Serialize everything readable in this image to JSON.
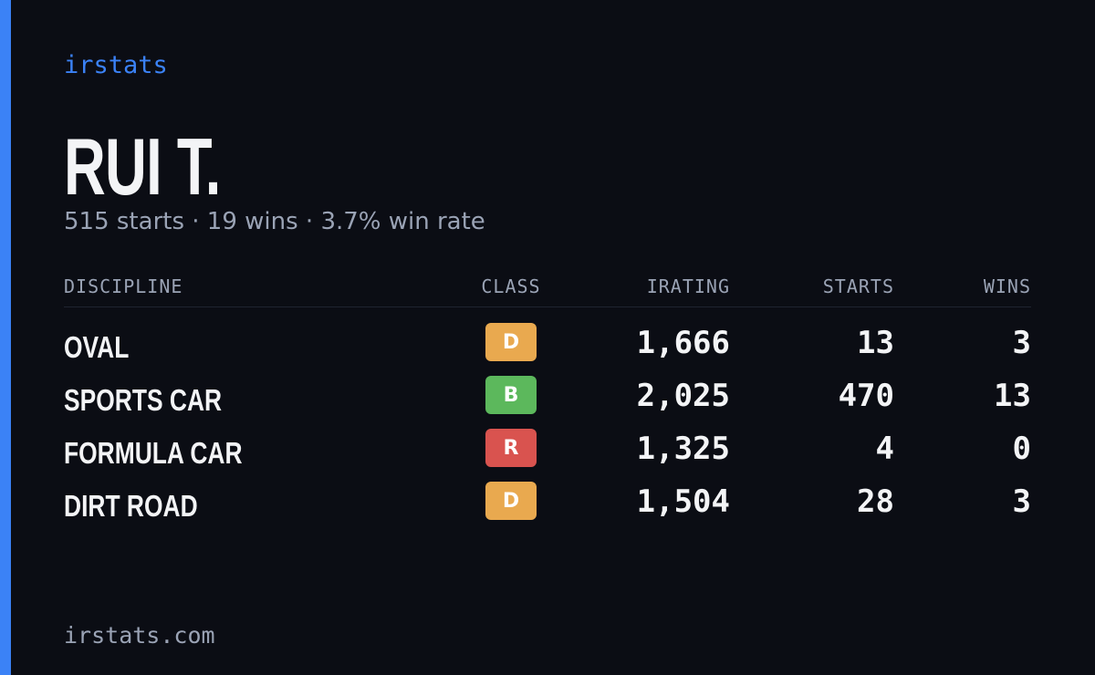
{
  "brand": "irstats",
  "profile": {
    "name": "RUI T.",
    "summary": "515 starts · 19 wins · 3.7% win rate"
  },
  "table": {
    "headers": [
      "DISCIPLINE",
      "CLASS",
      "IRATING",
      "STARTS",
      "WINS"
    ],
    "rows": [
      {
        "discipline": "OVAL",
        "class": "D",
        "class_color": "#e9a94f",
        "irating": "1,666",
        "starts": "13",
        "wins": "3"
      },
      {
        "discipline": "SPORTS CAR",
        "class": "B",
        "class_color": "#5cb85c",
        "irating": "2,025",
        "starts": "470",
        "wins": "13"
      },
      {
        "discipline": "FORMULA CAR",
        "class": "R",
        "class_color": "#d9534f",
        "irating": "1,325",
        "starts": "4",
        "wins": "0"
      },
      {
        "discipline": "DIRT ROAD",
        "class": "D",
        "class_color": "#e9a94f",
        "irating": "1,504",
        "starts": "28",
        "wins": "3"
      }
    ]
  },
  "footer": "irstats.com"
}
